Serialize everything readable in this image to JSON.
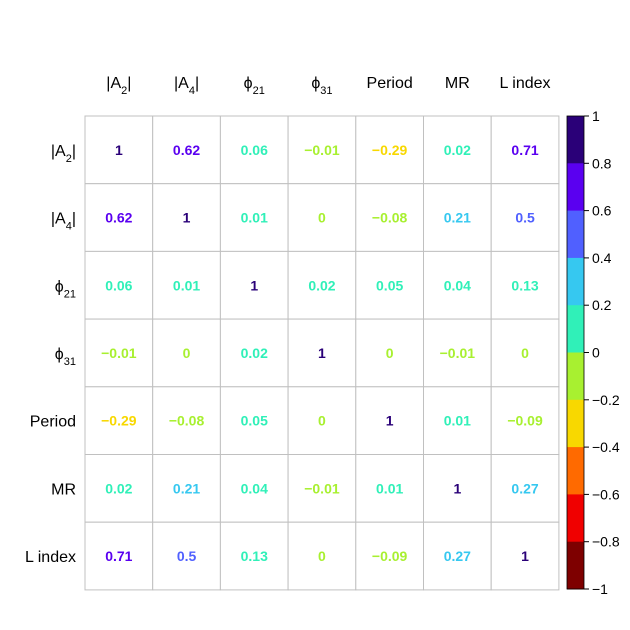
{
  "chart_data": {
    "type": "heatmap",
    "variables": [
      {
        "label": "|A",
        "sub": "2",
        "suffix": "|"
      },
      {
        "label": "|A",
        "sub": "4",
        "suffix": "|"
      },
      {
        "label": "ϕ",
        "sub": "21",
        "suffix": ""
      },
      {
        "label": "ϕ",
        "sub": "31",
        "suffix": ""
      },
      {
        "label": "Period",
        "sub": "",
        "suffix": ""
      },
      {
        "label": "MR",
        "sub": "",
        "suffix": ""
      },
      {
        "label": "L index",
        "sub": "",
        "suffix": ""
      }
    ],
    "matrix": [
      [
        1,
        0.62,
        0.06,
        -0.01,
        -0.29,
        0.02,
        0.71
      ],
      [
        0.62,
        1,
        0.01,
        0,
        -0.08,
        0.21,
        0.5
      ],
      [
        0.06,
        0.01,
        1,
        0.02,
        0.05,
        0.04,
        0.13
      ],
      [
        -0.01,
        0,
        0.02,
        1,
        0,
        -0.01,
        0
      ],
      [
        -0.29,
        -0.08,
        0.05,
        0,
        1,
        0.01,
        -0.09
      ],
      [
        0.02,
        0.21,
        0.04,
        -0.01,
        0.01,
        1,
        0.27
      ],
      [
        0.71,
        0.5,
        0.13,
        0,
        -0.09,
        0.27,
        1
      ]
    ],
    "value_range": [
      -1,
      1
    ],
    "legend": {
      "position": "right",
      "ticks": [
        "1",
        "0.8",
        "0.6",
        "0.4",
        "0.2",
        "0",
        "−0.2",
        "−0.4",
        "−0.6",
        "−0.8",
        "−1"
      ],
      "colors_top_to_bottom": [
        "#2a0078",
        "#5a00f0",
        "#5060ff",
        "#36c8f0",
        "#30f0b8",
        "#a8f030",
        "#f8d800",
        "#ff6a00",
        "#f00000",
        "#7e0000"
      ]
    },
    "grid": true
  }
}
